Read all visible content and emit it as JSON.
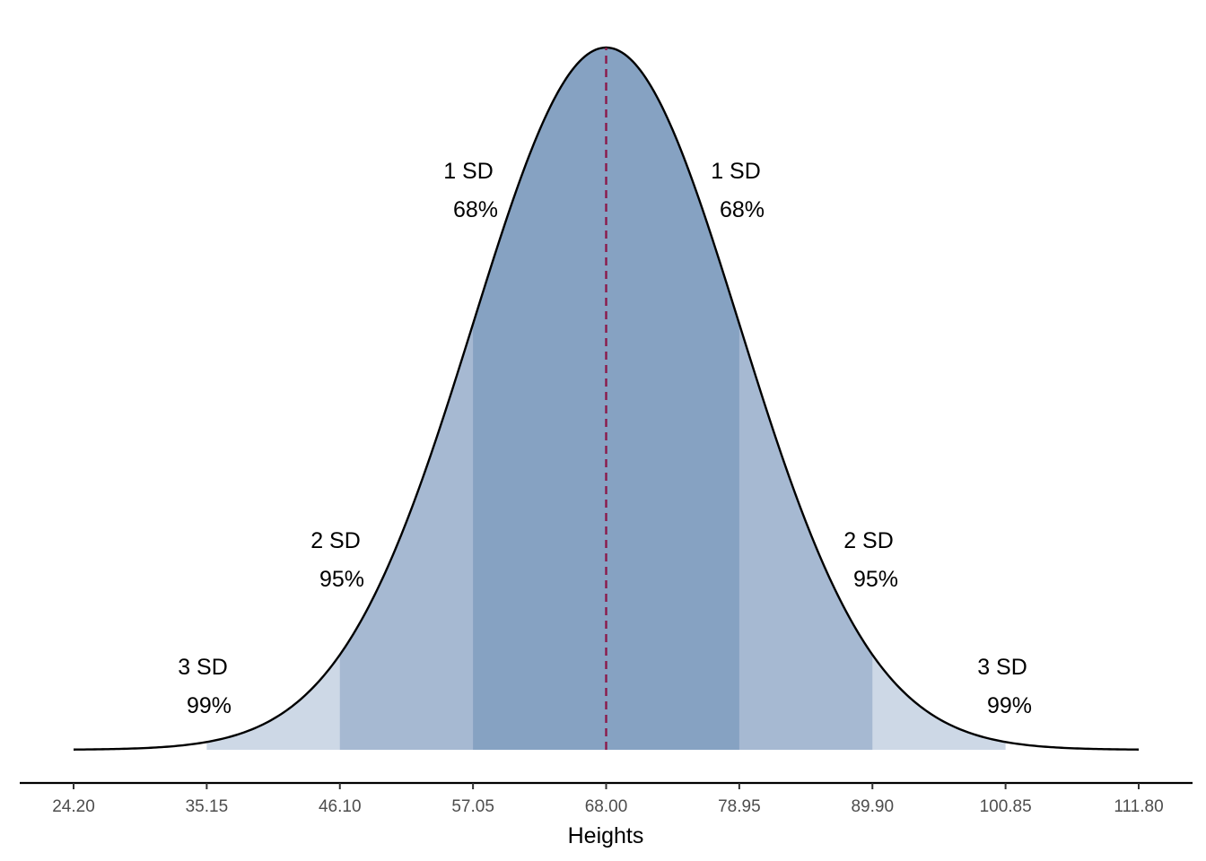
{
  "chart_data": {
    "type": "area",
    "title": "",
    "xlabel": "Heights",
    "ylabel": "",
    "xlim": [
      24.2,
      111.8
    ],
    "mean": 68.0,
    "sd": 10.95,
    "x_ticks": [
      {
        "value": 24.2,
        "label": "24.20"
      },
      {
        "value": 35.15,
        "label": "35.15"
      },
      {
        "value": 46.1,
        "label": "46.10"
      },
      {
        "value": 57.05,
        "label": "57.05"
      },
      {
        "value": 68.0,
        "label": "68.00"
      },
      {
        "value": 78.95,
        "label": "78.95"
      },
      {
        "value": 89.9,
        "label": "89.90"
      },
      {
        "value": 100.85,
        "label": "100.85"
      },
      {
        "value": 111.8,
        "label": "111.80"
      }
    ],
    "bands": [
      {
        "key": "sd3",
        "from": 35.15,
        "to": 100.85,
        "color": "#cdd8e6"
      },
      {
        "key": "sd2",
        "from": 46.1,
        "to": 89.9,
        "color": "#a6b9d2"
      },
      {
        "key": "sd1",
        "from": 57.05,
        "to": 78.95,
        "color": "#86a2c2"
      }
    ],
    "annotations": [
      {
        "key": "sd1-left",
        "sd_text": "1 SD",
        "pct_text": "68%",
        "x": 57.05,
        "level": 1
      },
      {
        "key": "sd1-right",
        "sd_text": "1 SD",
        "pct_text": "68%",
        "x": 78.95,
        "level": 1
      },
      {
        "key": "sd2-left",
        "sd_text": "2 SD",
        "pct_text": "95%",
        "x": 46.1,
        "level": 2
      },
      {
        "key": "sd2-right",
        "sd_text": "2 SD",
        "pct_text": "95%",
        "x": 89.9,
        "level": 2
      },
      {
        "key": "sd3-left",
        "sd_text": "3 SD",
        "pct_text": "99%",
        "x": 35.15,
        "level": 3
      },
      {
        "key": "sd3-right",
        "sd_text": "3 SD",
        "pct_text": "99%",
        "x": 100.85,
        "level": 3
      }
    ],
    "grid": false,
    "curve_color": "#000000",
    "mean_line_color": "#8b1a4a"
  }
}
